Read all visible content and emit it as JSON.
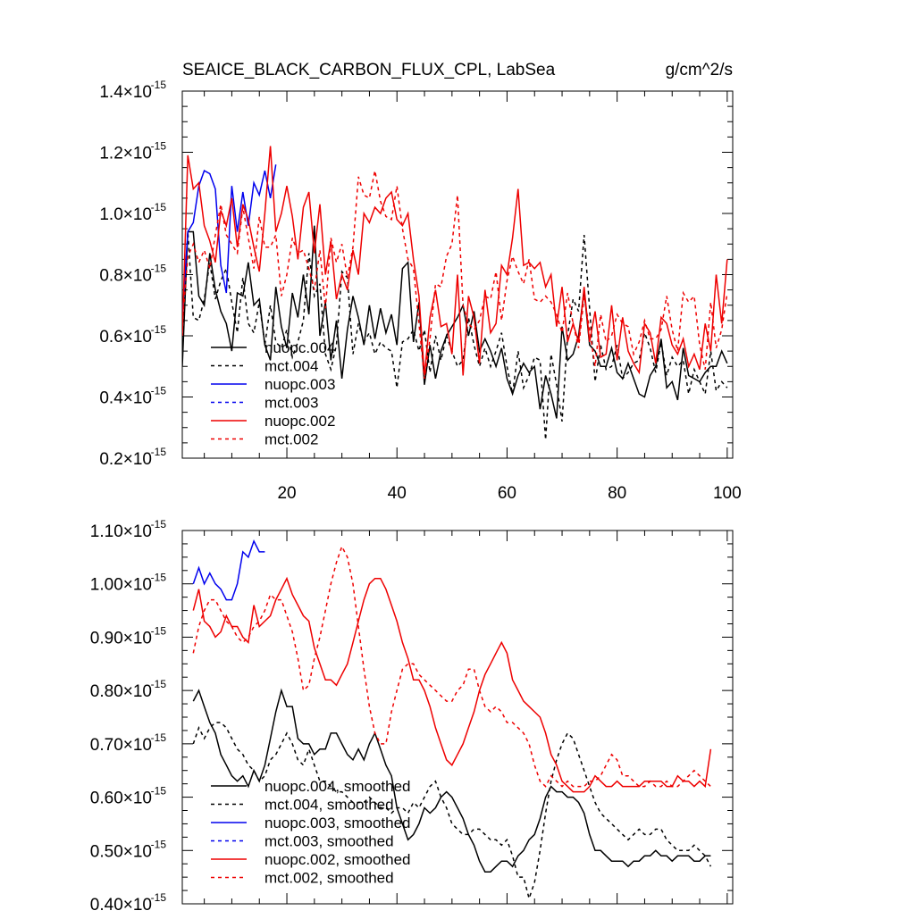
{
  "chart_data": [
    {
      "id": "raw",
      "type": "line",
      "title": "SEAICE_BLACK_CARBON_FLUX_CPL, LabSea",
      "units": "g/cm^2/s",
      "xlabel": "",
      "ylabel": "",
      "xlim": [
        1,
        101
      ],
      "ylim": [
        0.2,
        1.4
      ],
      "y_exponent": "-15",
      "x_tick_values": [
        20,
        40,
        60,
        80,
        100
      ],
      "x_tick_labels": [
        "20",
        "40",
        "60",
        "80",
        "100"
      ],
      "y_tick_values": [
        0.2,
        0.4,
        0.6,
        0.8,
        1.0,
        1.2,
        1.4
      ],
      "y_tick_labels": [
        "0.2",
        "0.4",
        "0.6",
        "0.8",
        "1.0",
        "1.2",
        "1.4"
      ],
      "legend_position": "bottom-left",
      "series": [
        {
          "name": "nuopc.004",
          "color": "#000000",
          "dash": "solid",
          "x_start": 1,
          "values": [
            0.5,
            0.94,
            0.94,
            0.73,
            0.7,
            0.87,
            0.75,
            0.68,
            0.64,
            0.55,
            0.74,
            0.73,
            0.84,
            0.7,
            0.72,
            0.57,
            0.52,
            0.76,
            0.63,
            0.56,
            0.74,
            0.66,
            0.8,
            0.67,
            0.96,
            0.6,
            0.71,
            0.52,
            0.65,
            0.46,
            0.62,
            0.73,
            0.66,
            0.57,
            0.7,
            0.59,
            0.69,
            0.61,
            0.67,
            0.57,
            0.82,
            0.84,
            0.58,
            0.71,
            0.44,
            0.57,
            0.46,
            0.55,
            0.6,
            0.63,
            0.66,
            0.7,
            0.6,
            0.68,
            0.55,
            0.59,
            0.55,
            0.5,
            0.56,
            0.46,
            0.41,
            0.47,
            0.51,
            0.48,
            0.5,
            0.36,
            0.47,
            0.41,
            0.33,
            0.63,
            0.52,
            0.54,
            0.6,
            0.75,
            0.57,
            0.55,
            0.5,
            0.5,
            0.56,
            0.48,
            0.46,
            0.51,
            0.46,
            0.41,
            0.4,
            0.47,
            0.5,
            0.59,
            0.43,
            0.45,
            0.39,
            0.56,
            0.47,
            0.46,
            0.45,
            0.48,
            0.5,
            0.5,
            0.55,
            0.51
          ]
        },
        {
          "name": "mct.004",
          "color": "#000000",
          "dash": "dashed",
          "x_start": 1,
          "values": [
            0.55,
            0.94,
            0.66,
            0.65,
            0.72,
            0.84,
            0.72,
            0.78,
            0.82,
            0.71,
            0.61,
            0.79,
            0.64,
            0.61,
            0.71,
            0.57,
            0.7,
            0.58,
            0.56,
            0.62,
            0.53,
            0.58,
            0.65,
            0.87,
            0.73,
            0.77,
            0.54,
            0.49,
            0.57,
            0.81,
            0.79,
            0.54,
            0.64,
            0.58,
            0.61,
            0.54,
            0.58,
            0.56,
            0.55,
            0.43,
            0.58,
            0.59,
            0.62,
            0.55,
            0.62,
            0.48,
            0.6,
            0.52,
            0.6,
            0.55,
            0.5,
            0.52,
            0.66,
            0.57,
            0.5,
            0.56,
            0.5,
            0.55,
            0.61,
            0.5,
            0.41,
            0.55,
            0.43,
            0.47,
            0.53,
            0.52,
            0.26,
            0.54,
            0.44,
            0.32,
            0.6,
            0.72,
            0.68,
            0.93,
            0.69,
            0.45,
            0.57,
            0.49,
            0.5,
            0.57,
            0.46,
            0.48,
            0.51,
            0.52,
            0.61,
            0.56,
            0.48,
            0.58,
            0.47,
            0.53,
            0.5,
            0.52,
            0.41,
            0.49,
            0.45,
            0.41,
            0.55,
            0.42,
            0.45,
            0.43
          ]
        },
        {
          "name": "nuopc.003",
          "color": "#0000ee",
          "dash": "solid",
          "x_start": 1,
          "values": [
            0.66,
            0.94,
            0.97,
            1.09,
            1.14,
            1.13,
            1.08,
            0.83,
            0.74,
            1.09,
            0.94,
            1.07,
            0.96,
            1.1,
            1.06,
            1.14,
            1.05,
            1.16
          ]
        },
        {
          "name": "mct.003",
          "color": "#0000ee",
          "dash": "dashed",
          "x_start": 1,
          "values": []
        },
        {
          "name": "nuopc.002",
          "color": "#ee0000",
          "dash": "solid",
          "x_start": 1,
          "values": [
            0.6,
            1.19,
            1.08,
            1.1,
            0.96,
            0.91,
            0.84,
            1.01,
            0.96,
            1.05,
            0.89,
            1.03,
            0.98,
            0.89,
            0.81,
            1.0,
            1.22,
            0.94,
            1.0,
            1.09,
            0.99,
            0.85,
            1.02,
            1.07,
            0.87,
            1.03,
            0.8,
            0.91,
            0.72,
            0.8,
            0.75,
            0.88,
            0.8,
            1.0,
            0.97,
            1.02,
            1.0,
            1.05,
            1.07,
            0.98,
            0.96,
            1.0,
            0.85,
            0.73,
            0.47,
            0.66,
            0.75,
            0.63,
            0.64,
            0.54,
            0.8,
            0.47,
            0.73,
            0.66,
            0.51,
            0.75,
            0.61,
            0.64,
            0.83,
            0.8,
            0.92,
            1.08,
            0.83,
            0.84,
            0.82,
            0.84,
            0.76,
            0.8,
            0.63,
            0.76,
            0.58,
            0.64,
            0.58,
            0.76,
            0.58,
            0.68,
            0.53,
            0.54,
            0.7,
            0.52,
            0.66,
            0.55,
            0.51,
            0.48,
            0.64,
            0.61,
            0.51,
            0.66,
            0.64,
            0.57,
            0.54,
            0.59,
            0.5,
            0.54,
            0.49,
            0.64,
            0.55,
            0.8,
            0.64,
            0.85
          ]
        },
        {
          "name": "mct.002",
          "color": "#ee0000",
          "dash": "dashed",
          "x_start": 1,
          "values": [
            0.64,
            0.86,
            0.9,
            0.84,
            0.88,
            0.82,
            0.93,
            1.03,
            0.93,
            0.9,
            0.87,
            1.02,
            0.92,
            0.82,
            0.99,
            0.89,
            0.89,
            0.93,
            0.73,
            0.8,
            0.92,
            0.87,
            0.88,
            0.82,
            0.75,
            0.88,
            0.69,
            0.92,
            0.84,
            0.9,
            0.79,
            0.89,
            1.12,
            1.06,
            1.05,
            1.14,
            1.04,
            0.99,
            0.98,
            1.09,
            0.95,
            0.85,
            0.82,
            0.64,
            0.46,
            0.59,
            0.77,
            0.76,
            0.86,
            0.9,
            1.06,
            0.7,
            0.64,
            0.62,
            0.65,
            0.73,
            0.72,
            0.81,
            0.65,
            0.78,
            0.86,
            0.81,
            0.77,
            0.85,
            0.72,
            0.71,
            0.73,
            0.71,
            0.67,
            0.61,
            0.74,
            0.64,
            0.56,
            0.73,
            0.62,
            0.5,
            0.67,
            0.58,
            0.6,
            0.67,
            0.64,
            0.63,
            0.54,
            0.58,
            0.65,
            0.59,
            0.59,
            0.62,
            0.73,
            0.62,
            0.55,
            0.74,
            0.71,
            0.73,
            0.57,
            0.49,
            0.71,
            0.56,
            0.62,
            0.74
          ]
        }
      ]
    },
    {
      "id": "smoothed",
      "type": "line",
      "title": "",
      "xlabel": "",
      "ylabel": "",
      "xlim": [
        1,
        101
      ],
      "ylim": [
        0.4,
        1.1
      ],
      "y_exponent": "-15",
      "y_tick_values": [
        0.4,
        0.5,
        0.6,
        0.7,
        0.8,
        0.9,
        1.0,
        1.1
      ],
      "y_tick_labels": [
        "0.40",
        "0.50",
        "0.60",
        "0.70",
        "0.80",
        "0.90",
        "1.00",
        "1.10"
      ],
      "legend_position": "bottom-left",
      "series": [
        {
          "name": "nuopc.004, smoothed",
          "color": "#000000",
          "dash": "solid",
          "x_start": 3,
          "values": [
            0.78,
            0.8,
            0.77,
            0.74,
            0.72,
            0.68,
            0.66,
            0.64,
            0.63,
            0.64,
            0.62,
            0.65,
            0.63,
            0.66,
            0.71,
            0.76,
            0.8,
            0.77,
            0.77,
            0.71,
            0.7,
            0.7,
            0.68,
            0.69,
            0.69,
            0.72,
            0.72,
            0.7,
            0.68,
            0.67,
            0.69,
            0.67,
            0.7,
            0.72,
            0.69,
            0.66,
            0.64,
            0.58,
            0.55,
            0.52,
            0.53,
            0.55,
            0.58,
            0.57,
            0.58,
            0.6,
            0.61,
            0.6,
            0.58,
            0.56,
            0.53,
            0.51,
            0.48,
            0.46,
            0.46,
            0.47,
            0.48,
            0.48,
            0.47,
            0.49,
            0.5,
            0.52,
            0.53,
            0.56,
            0.6,
            0.62,
            0.61,
            0.61,
            0.6,
            0.6,
            0.59,
            0.57,
            0.53,
            0.5,
            0.5,
            0.49,
            0.48,
            0.48,
            0.48,
            0.47,
            0.48,
            0.48,
            0.49,
            0.49,
            0.5,
            0.49,
            0.49,
            0.48,
            0.49,
            0.49,
            0.49,
            0.48,
            0.48,
            0.49,
            0.49
          ]
        },
        {
          "name": "mct.004, smoothed",
          "color": "#000000",
          "dash": "dashed",
          "x_start": 3,
          "values": [
            0.7,
            0.73,
            0.71,
            0.73,
            0.74,
            0.74,
            0.73,
            0.71,
            0.69,
            0.68,
            0.66,
            0.65,
            0.63,
            0.64,
            0.67,
            0.68,
            0.7,
            0.72,
            0.7,
            0.67,
            0.66,
            0.69,
            0.66,
            0.63,
            0.63,
            0.62,
            0.61,
            0.61,
            0.6,
            0.59,
            0.59,
            0.59,
            0.6,
            0.59,
            0.58,
            0.58,
            0.57,
            0.58,
            0.58,
            0.57,
            0.59,
            0.58,
            0.6,
            0.62,
            0.63,
            0.6,
            0.58,
            0.55,
            0.54,
            0.53,
            0.53,
            0.54,
            0.54,
            0.53,
            0.52,
            0.52,
            0.51,
            0.52,
            0.49,
            0.45,
            0.45,
            0.41,
            0.44,
            0.5,
            0.57,
            0.63,
            0.67,
            0.7,
            0.72,
            0.71,
            0.68,
            0.65,
            0.62,
            0.59,
            0.57,
            0.56,
            0.55,
            0.54,
            0.53,
            0.52,
            0.53,
            0.54,
            0.53,
            0.53,
            0.54,
            0.54,
            0.52,
            0.51,
            0.5,
            0.5,
            0.5,
            0.51,
            0.5,
            0.49,
            0.47
          ]
        },
        {
          "name": "nuopc.003, smoothed",
          "color": "#0000ee",
          "dash": "solid",
          "x_start": 3,
          "values": [
            1.0,
            1.03,
            1.0,
            1.02,
            1.0,
            0.99,
            0.97,
            0.97,
            1.0,
            1.06,
            1.05,
            1.08,
            1.06,
            1.06
          ]
        },
        {
          "name": "mct.003, smoothed",
          "color": "#0000ee",
          "dash": "dashed",
          "x_start": 3,
          "values": []
        },
        {
          "name": "nuopc.002, smoothed",
          "color": "#ee0000",
          "dash": "solid",
          "x_start": 3,
          "values": [
            0.95,
            0.99,
            0.93,
            0.92,
            0.9,
            0.91,
            0.94,
            0.92,
            0.92,
            0.9,
            0.89,
            0.96,
            0.92,
            0.93,
            0.94,
            0.97,
            0.99,
            1.01,
            0.98,
            0.96,
            0.94,
            0.93,
            0.88,
            0.85,
            0.82,
            0.82,
            0.81,
            0.83,
            0.85,
            0.89,
            0.93,
            0.97,
            1.0,
            1.01,
            1.01,
            0.99,
            0.96,
            0.93,
            0.89,
            0.86,
            0.82,
            0.82,
            0.8,
            0.77,
            0.73,
            0.7,
            0.67,
            0.66,
            0.68,
            0.7,
            0.73,
            0.76,
            0.8,
            0.83,
            0.85,
            0.87,
            0.89,
            0.87,
            0.82,
            0.8,
            0.78,
            0.77,
            0.76,
            0.75,
            0.72,
            0.68,
            0.66,
            0.63,
            0.62,
            0.61,
            0.61,
            0.61,
            0.62,
            0.64,
            0.63,
            0.62,
            0.62,
            0.63,
            0.62,
            0.62,
            0.62,
            0.62,
            0.63,
            0.63,
            0.63,
            0.63,
            0.62,
            0.62,
            0.64,
            0.63,
            0.63,
            0.62,
            0.63,
            0.62,
            0.69
          ]
        },
        {
          "name": "mct.002, smoothed",
          "color": "#ee0000",
          "dash": "dashed",
          "x_start": 3,
          "values": [
            0.87,
            0.92,
            0.95,
            0.97,
            0.97,
            0.95,
            0.93,
            0.92,
            0.9,
            0.89,
            0.9,
            0.92,
            0.93,
            0.95,
            0.98,
            0.97,
            0.97,
            0.94,
            0.91,
            0.86,
            0.8,
            0.81,
            0.86,
            0.9,
            0.95,
            1.0,
            1.04,
            1.07,
            1.05,
            1.0,
            0.92,
            0.84,
            0.77,
            0.72,
            0.7,
            0.7,
            0.76,
            0.8,
            0.84,
            0.85,
            0.85,
            0.83,
            0.82,
            0.81,
            0.8,
            0.79,
            0.78,
            0.78,
            0.8,
            0.81,
            0.84,
            0.84,
            0.8,
            0.77,
            0.76,
            0.77,
            0.76,
            0.74,
            0.74,
            0.73,
            0.72,
            0.7,
            0.66,
            0.63,
            0.62,
            0.64,
            0.63,
            0.62,
            0.63,
            0.62,
            0.62,
            0.62,
            0.63,
            0.63,
            0.64,
            0.66,
            0.68,
            0.67,
            0.64,
            0.64,
            0.63,
            0.62,
            0.62,
            0.63,
            0.62,
            0.62,
            0.63,
            0.62,
            0.62,
            0.63,
            0.64,
            0.65,
            0.64,
            0.63,
            0.62
          ]
        }
      ]
    }
  ]
}
